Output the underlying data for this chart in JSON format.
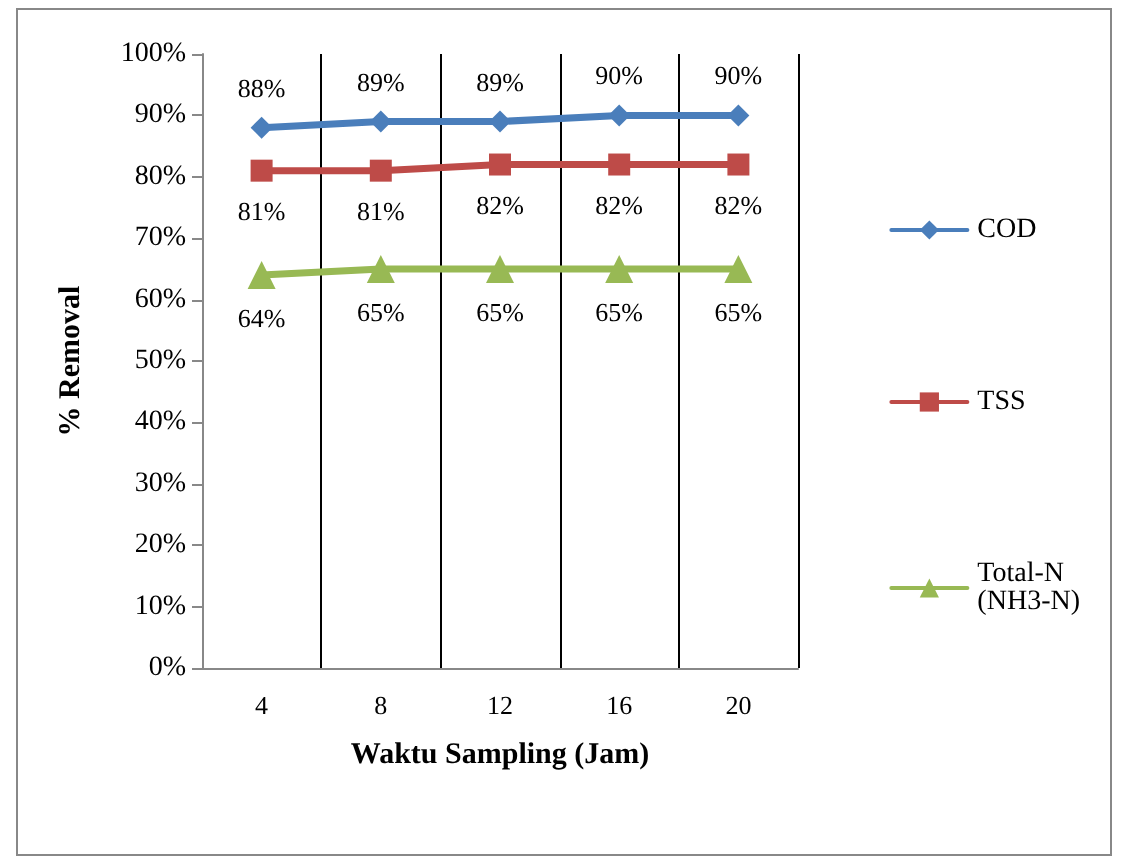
{
  "chart_data": {
    "type": "line",
    "xlabel": "Waktu Sampling (Jam)",
    "ylabel": "% Removal",
    "categories": [
      "4",
      "8",
      "12",
      "16",
      "20"
    ],
    "series": [
      {
        "name": "COD",
        "color": "#4a7ebb",
        "marker": "diamond",
        "values": [
          88,
          89,
          89,
          90,
          90
        ],
        "value_labels": [
          "88%",
          "89%",
          "89%",
          "90%",
          "90%"
        ]
      },
      {
        "name": "TSS",
        "color": "#be4b48",
        "marker": "square",
        "values": [
          81,
          81,
          82,
          82,
          82
        ],
        "value_labels": [
          "81%",
          "81%",
          "82%",
          "82%",
          "82%"
        ]
      },
      {
        "name": "Total-N (NH3-N)",
        "color": "#98b954",
        "marker": "triangle",
        "values": [
          64,
          65,
          65,
          65,
          65
        ],
        "value_labels": [
          "64%",
          "65%",
          "65%",
          "65%",
          "65%"
        ]
      }
    ],
    "ylim": [
      0,
      100
    ],
    "yticks": [
      {
        "value": 0,
        "label": "0%"
      },
      {
        "value": 10,
        "label": "10%"
      },
      {
        "value": 20,
        "label": "20%"
      },
      {
        "value": 30,
        "label": "30%"
      },
      {
        "value": 40,
        "label": "40%"
      },
      {
        "value": 50,
        "label": "50%"
      },
      {
        "value": 60,
        "label": "60%"
      },
      {
        "value": 70,
        "label": "70%"
      },
      {
        "value": 80,
        "label": "80%"
      },
      {
        "value": 90,
        "label": "90%"
      },
      {
        "value": 100,
        "label": "100%"
      }
    ],
    "grid": "x",
    "legend": "right",
    "line_style": "solid"
  }
}
